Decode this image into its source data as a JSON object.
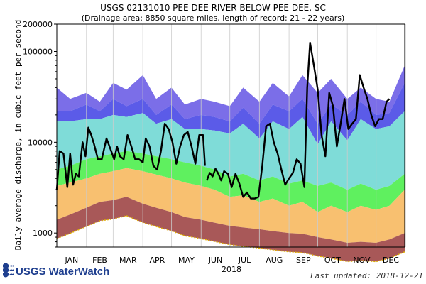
{
  "header": {
    "title": "USGS 02131010 PEE DEE RIVER BELOW PEE DEE, SC",
    "subtitle": "(Drainage area: 8850 square miles, length of record: 21 - 22 years)"
  },
  "footer": {
    "brand": "USGS WaterWatch",
    "last_updated": "Last updated: 2018-12-21"
  },
  "colors": {
    "max_band": "#7b6ee8",
    "p90_band": "#5b5be8",
    "p75_band": "#7fdcd8",
    "p25_band": "#5ff05f",
    "p10_band": "#f8c070",
    "min_band": "#a85858",
    "record_low": "#e0b000",
    "flow_line": "#000000",
    "grid": "#cccccc"
  },
  "chart_data": {
    "type": "area",
    "title": "USGS 02131010 PEE DEE RIVER BELOW PEE DEE, SC",
    "subtitle": "(Drainage area: 8850 square miles, length of record: 21 - 22 years)",
    "ylabel": "Daily average discharge, in cubic feet per second",
    "xlabel": "2018",
    "yscale": "log",
    "ylim": [
      700,
      200000
    ],
    "y_tick_labels": [
      "1000",
      "10000",
      "100000",
      "200000"
    ],
    "y_tick_values": [
      1000,
      10000,
      100000,
      200000
    ],
    "month_labels": [
      "JAN",
      "FEB",
      "MAR",
      "APR",
      "MAY",
      "JUN",
      "JUL",
      "AUG",
      "SEP",
      "OCT",
      "NOV",
      "DEC"
    ],
    "grid": "vertical month lines",
    "x_days": [
      1,
      15,
      32,
      46,
      60,
      74,
      91,
      105,
      121,
      135,
      152,
      166,
      182,
      196,
      213,
      227,
      244,
      258,
      274,
      288,
      305,
      319,
      335,
      349,
      365
    ],
    "bands": {
      "max": [
        40000,
        30000,
        35000,
        28000,
        45000,
        38000,
        55000,
        30000,
        40000,
        26000,
        30000,
        28000,
        25000,
        40000,
        28000,
        45000,
        32000,
        55000,
        35000,
        50000,
        30000,
        40000,
        30000,
        28000,
        70000
      ],
      "p90": [
        22000,
        22000,
        26000,
        22000,
        30000,
        25000,
        30000,
        20000,
        26000,
        18000,
        20000,
        19000,
        17000,
        24000,
        16000,
        26000,
        22000,
        30000,
        16000,
        26000,
        20000,
        28000,
        20000,
        21000,
        45000
      ],
      "p75": [
        17000,
        17000,
        18000,
        18000,
        20000,
        19000,
        21000,
        16000,
        18000,
        14000,
        14000,
        13500,
        12500,
        16000,
        11000,
        17000,
        14000,
        19000,
        9500,
        17000,
        10500,
        18000,
        14000,
        15000,
        22000
      ],
      "p25": [
        5000,
        5500,
        6500,
        7000,
        7500,
        8000,
        7500,
        7000,
        6500,
        6000,
        5500,
        5000,
        4200,
        4500,
        3800,
        4200,
        3500,
        3800,
        3300,
        3600,
        3000,
        3500,
        3000,
        3300,
        4500
      ],
      "p10": [
        3300,
        3600,
        4000,
        4500,
        4800,
        5200,
        4800,
        4400,
        4000,
        3600,
        3300,
        3000,
        2500,
        2600,
        2200,
        2400,
        2000,
        2200,
        1700,
        2000,
        1700,
        2000,
        1800,
        2000,
        3000
      ],
      "min": [
        1400,
        1600,
        1900,
        2200,
        2300,
        2500,
        2100,
        1900,
        1700,
        1500,
        1400,
        1300,
        1200,
        1150,
        1100,
        1050,
        1000,
        980,
        900,
        850,
        780,
        800,
        780,
        850,
        1000
      ]
    },
    "series": [
      {
        "x": [
          1,
          4,
          8,
          12,
          15,
          18,
          21,
          24,
          28,
          31,
          34,
          37,
          40,
          44,
          48,
          53,
          57,
          61,
          64,
          67,
          71,
          75,
          79,
          83,
          87,
          91,
          94,
          98,
          102,
          106,
          110,
          114,
          118,
          122,
          126,
          130,
          134,
          138,
          142,
          146,
          150,
          154,
          156
        ],
        "y": [
          3000,
          8000,
          7500,
          3200,
          7500,
          3400,
          4500,
          4200,
          10000,
          7000,
          14500,
          12000,
          9500,
          6500,
          6500,
          11000,
          8500,
          6500,
          9000,
          7000,
          6500,
          12000,
          9000,
          6500,
          6500,
          6000,
          11000,
          9000,
          5500,
          5000,
          8000,
          16000,
          14000,
          10000,
          5800,
          9000,
          12000,
          13000,
          9000,
          5800,
          12000,
          12000,
          5500
        ]
      },
      {
        "x": [
          158,
          161,
          164,
          167,
          170,
          173,
          176,
          180,
          184,
          188,
          192,
          196,
          200,
          204,
          208,
          212,
          216,
          220,
          224,
          228,
          232,
          236,
          240,
          244,
          248,
          252,
          256,
          260,
          263,
          266,
          270,
          274,
          278,
          282,
          286,
          290,
          294,
          298,
          302,
          306,
          310,
          314,
          318,
          322,
          326,
          330,
          334,
          338,
          342,
          346,
          349
        ],
        "y": [
          3800,
          4600,
          4200,
          5100,
          4500,
          3800,
          4800,
          4500,
          3200,
          4500,
          3500,
          2500,
          2800,
          2400,
          2400,
          2500,
          5500,
          15000,
          16000,
          10000,
          7500,
          5000,
          3400,
          4000,
          4600,
          6500,
          5800,
          3200,
          40000,
          125000,
          70000,
          38000,
          12000,
          7000,
          35000,
          25000,
          9000,
          16000,
          30000,
          14000,
          16000,
          18000,
          55000,
          40000,
          30000,
          20000,
          15000,
          18000,
          18000,
          28000,
          30000
        ]
      }
    ]
  }
}
